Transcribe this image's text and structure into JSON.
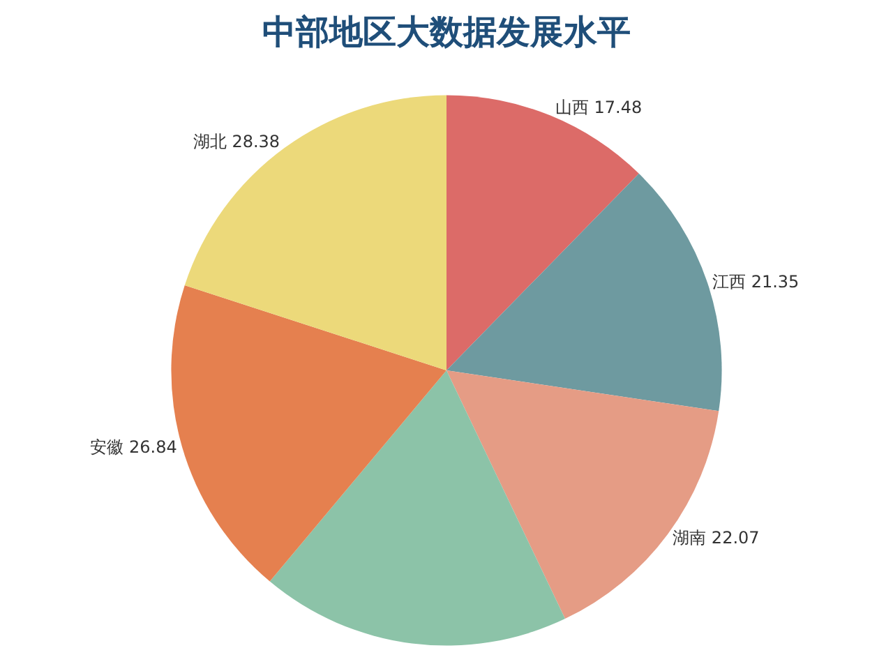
{
  "chart_data": {
    "type": "pie",
    "title": "中部地区大数据发展水平",
    "categories": [
      "山西",
      "江西",
      "湖南",
      null,
      "安徽",
      "湖北"
    ],
    "values": [
      17.48,
      21.35,
      22.07,
      25.8,
      26.84,
      28.38
    ],
    "value_labels": [
      "17.48",
      "21.35",
      "22.07",
      null,
      "26.84",
      "28.38"
    ],
    "colors": [
      "#dc6b68",
      "#6e9aa0",
      "#e59c85",
      "#8cc3a8",
      "#e5804f",
      "#ecd97a"
    ],
    "legend": false
  }
}
